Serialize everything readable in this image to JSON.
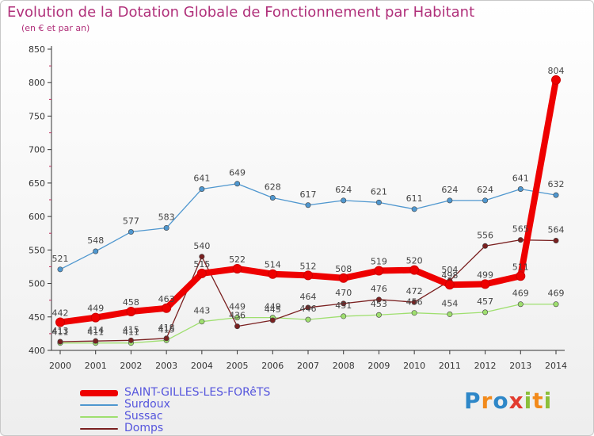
{
  "title": "Evolution de la Dotation Globale de Fonctionnement par Habitant",
  "subtitle": "(en € et par an)",
  "logo": {
    "text": "Proxiti",
    "letters": [
      "P",
      "r",
      "o",
      "x",
      "i",
      "t",
      "i"
    ],
    "colors": [
      "#2e87c8",
      "#f28a1b",
      "#2e87c8",
      "#e23b2e",
      "#8bbf3a",
      "#f28a1b",
      "#8bbf3a"
    ]
  },
  "chart_data": {
    "type": "line",
    "title": "Evolution de la Dotation Globale de Fonctionnement par Habitant",
    "subtitle": "(en € et par an)",
    "xlabel": "",
    "ylabel": "",
    "ylim": [
      400,
      850
    ],
    "yticks": [
      400,
      450,
      500,
      550,
      600,
      650,
      700,
      750,
      800,
      850
    ],
    "x": [
      2000,
      2001,
      2002,
      2003,
      2004,
      2005,
      2006,
      2007,
      2008,
      2009,
      2010,
      2011,
      2012,
      2013,
      2014
    ],
    "grid": false,
    "legend_position": "bottom-left",
    "series": [
      {
        "name": "SAINT-GILLES-LES-FORêTS",
        "color": "#ee0000",
        "values": [
          442,
          449,
          458,
          463,
          515,
          522,
          514,
          512,
          508,
          519,
          520,
          498,
          499,
          511,
          804
        ],
        "labels": [
          "442",
          "449",
          "458",
          "463",
          "515",
          "522",
          "514",
          "512",
          "508",
          "519",
          "520",
          "498",
          "499",
          "511",
          "804"
        ]
      },
      {
        "name": "Surdoux",
        "color": "#4f97cf",
        "values": [
          521,
          548,
          577,
          583,
          641,
          649,
          628,
          617,
          624,
          621,
          611,
          624,
          624,
          641,
          632
        ],
        "labels": [
          "521",
          "548",
          "577",
          "583",
          "641",
          "649",
          "628",
          "617",
          "624",
          "621",
          "611",
          "624",
          "624",
          "641",
          "632"
        ]
      },
      {
        "name": "Sussac",
        "color": "#9fdf6f",
        "values": [
          411,
          411,
          411,
          415,
          443,
          449,
          449,
          446,
          451,
          453,
          456,
          454,
          457,
          469,
          469
        ],
        "labels": [
          "411",
          "411",
          "411",
          "415",
          "443",
          "449",
          "449",
          "446",
          "451",
          "453",
          "456",
          "454",
          "457",
          "469",
          "469"
        ]
      },
      {
        "name": "Domps",
        "color": "#7a2020",
        "values": [
          413,
          414,
          415,
          418,
          540,
          436,
          445,
          464,
          470,
          476,
          472,
          504,
          556,
          565,
          564
        ],
        "labels": [
          "413",
          "414",
          "415",
          "418",
          "540",
          "436",
          "445",
          "464",
          "470",
          "476",
          "472",
          "504",
          "556",
          "565",
          "564"
        ]
      }
    ]
  }
}
